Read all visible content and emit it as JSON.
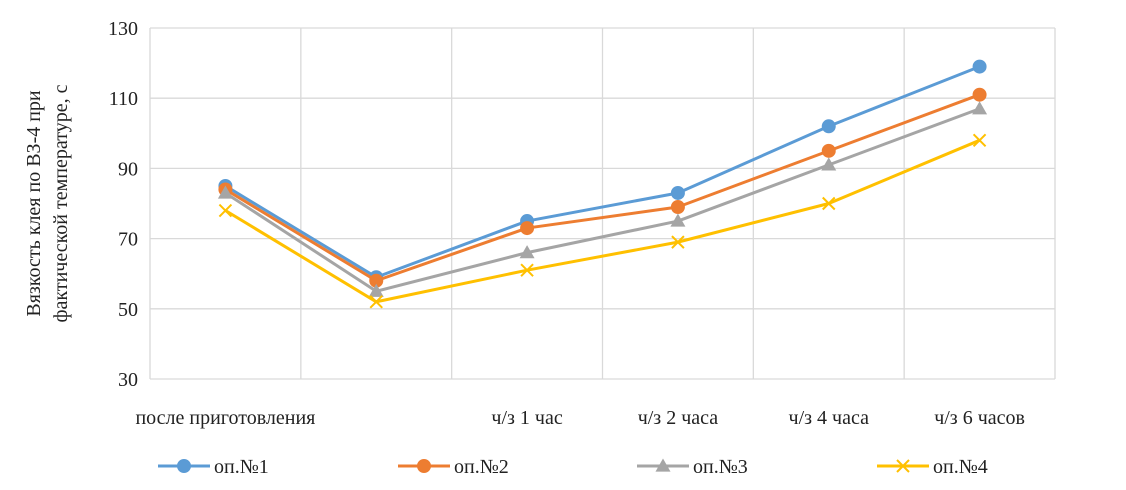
{
  "chart_data": {
    "type": "line",
    "title": "",
    "xlabel": "",
    "ylabel_lines": [
      "Вязкость клея по ВЗ-4 при",
      "фактической температуре, с"
    ],
    "categories": [
      "после приготовления",
      "",
      "ч/з 1 час",
      "ч/з 2 часа",
      "ч/з 4 часа",
      "ч/з 6 часов"
    ],
    "ylim": [
      30,
      130
    ],
    "yticks": [
      30,
      50,
      70,
      90,
      110,
      130
    ],
    "grid": true,
    "legend_position": "bottom",
    "series": [
      {
        "name": "оп.№1",
        "color": "#5B9BD5",
        "marker": "circle",
        "values": [
          85,
          59,
          75,
          83,
          102,
          119
        ]
      },
      {
        "name": "оп.№2",
        "color": "#ED7D31",
        "marker": "circle",
        "values": [
          84,
          58,
          73,
          79,
          95,
          111
        ]
      },
      {
        "name": "оп.№3",
        "color": "#A5A5A5",
        "marker": "triangle",
        "values": [
          83,
          55,
          66,
          75,
          91,
          107
        ]
      },
      {
        "name": "оп.№4",
        "color": "#FFC000",
        "marker": "cross",
        "values": [
          78,
          52,
          61,
          69,
          80,
          98
        ]
      }
    ]
  }
}
